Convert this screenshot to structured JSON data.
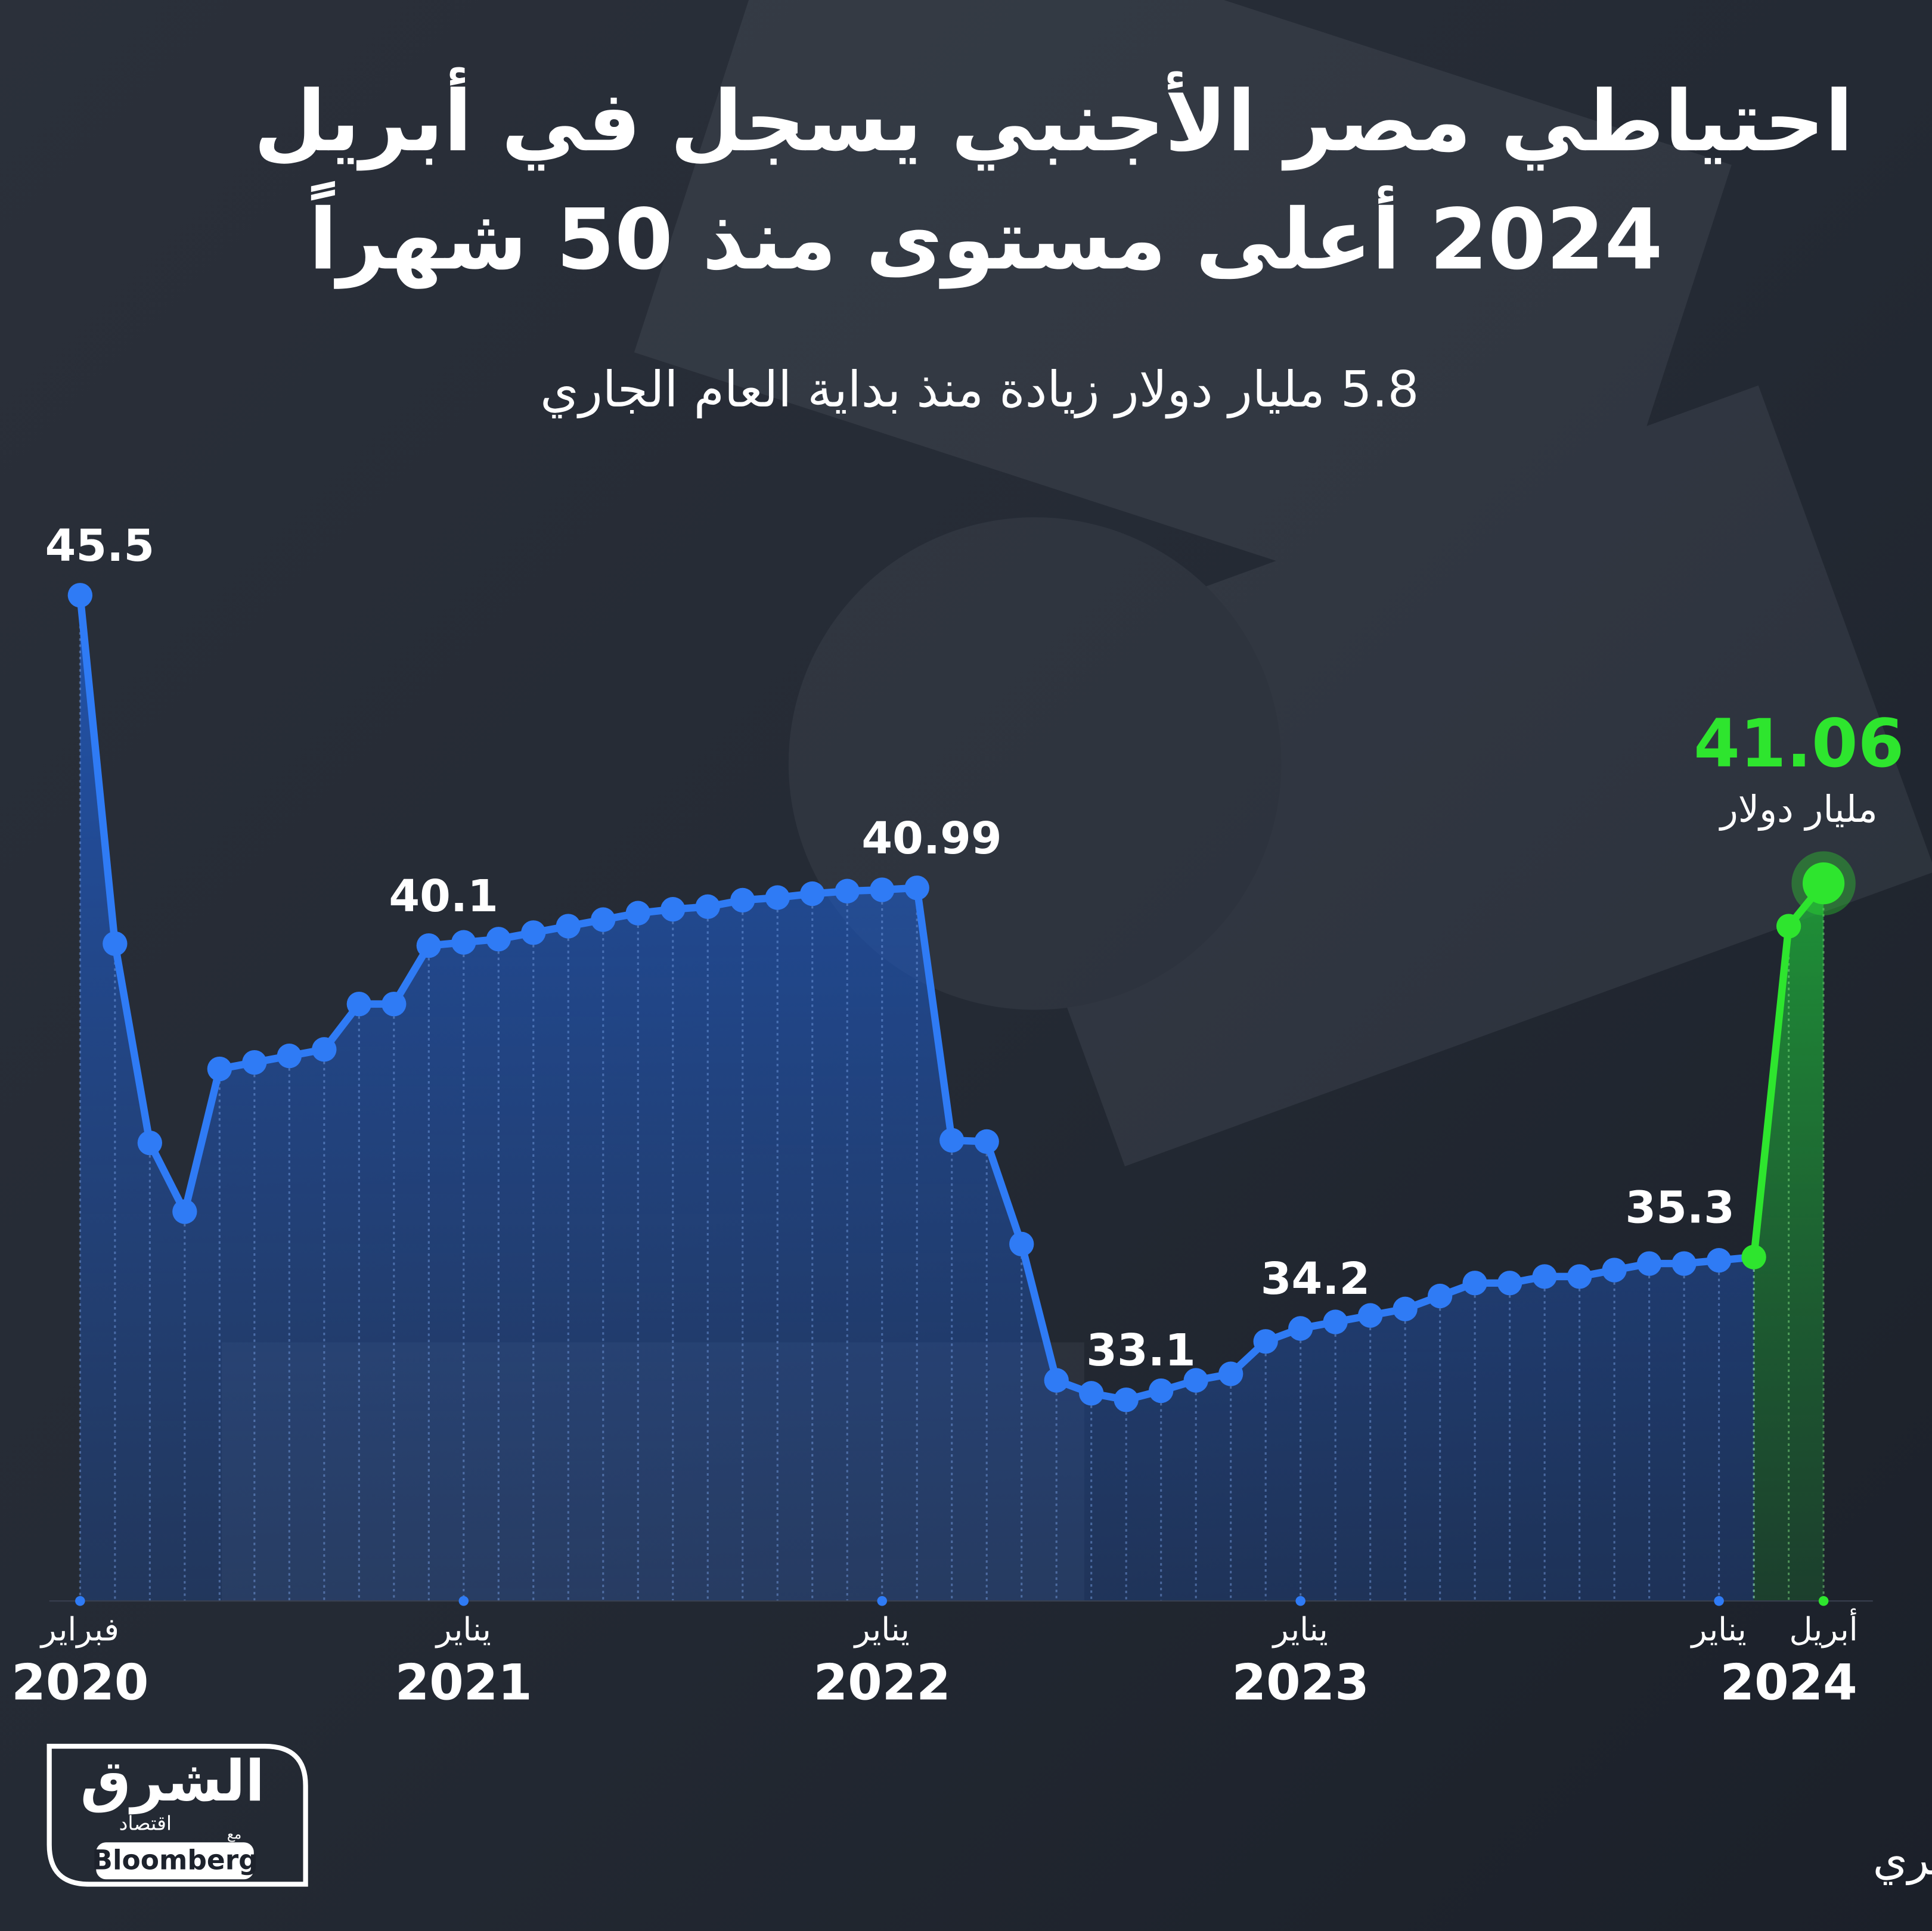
{
  "chart_data": {
    "type": "line",
    "title": [
      "احتياطي مصر الأجنبي يسجل في أبريل",
      "2024 أعلى مستوى منذ 50 شهراً"
    ],
    "subtitle": "5.8 مليار دولار زيادة منذ بداية العام الجاري",
    "categories": [
      "فبراير",
      null,
      null,
      null,
      null,
      null,
      null,
      null,
      null,
      null,
      null,
      "يناير",
      null,
      null,
      null,
      null,
      null,
      null,
      null,
      null,
      null,
      null,
      null,
      "يناير",
      null,
      null,
      null,
      null,
      null,
      null,
      null,
      null,
      null,
      null,
      null,
      "يناير",
      null,
      null,
      null,
      null,
      null,
      null,
      null,
      null,
      null,
      null,
      null,
      "يناير",
      null,
      null,
      "أبريل"
    ],
    "years": [
      "2020",
      null,
      null,
      null,
      null,
      null,
      null,
      null,
      null,
      null,
      null,
      "2021",
      null,
      null,
      null,
      null,
      null,
      null,
      null,
      null,
      null,
      null,
      null,
      "2022",
      null,
      null,
      null,
      null,
      null,
      null,
      null,
      null,
      null,
      null,
      null,
      "2023",
      null,
      null,
      null,
      null,
      null,
      null,
      null,
      null,
      null,
      null,
      null,
      null,
      null,
      "2024",
      null
    ],
    "series": [
      {
        "color": "#2f7bf5",
        "values": [
          45.5,
          40.13,
          37.06,
          36.0,
          38.2,
          38.3,
          38.4,
          38.5,
          39.2,
          39.2,
          40.1,
          40.15,
          40.2,
          40.3,
          40.4,
          40.5,
          40.6,
          40.66,
          40.7,
          40.8,
          40.84,
          40.9,
          40.94,
          40.96,
          40.99,
          37.1,
          37.08,
          35.5,
          33.4,
          33.2,
          33.1,
          33.24,
          33.4,
          33.5,
          34.0,
          34.2,
          34.3,
          34.4,
          34.5,
          34.7,
          34.9,
          34.9,
          35.0,
          35.0,
          35.1,
          35.2,
          35.2,
          35.25,
          35.3,
          null,
          null
        ],
        "value_labels": [
          "45.5",
          null,
          null,
          null,
          null,
          null,
          null,
          null,
          null,
          null,
          "40.1",
          null,
          null,
          null,
          null,
          null,
          null,
          null,
          null,
          null,
          null,
          null,
          null,
          null,
          "40.99",
          null,
          null,
          null,
          null,
          null,
          "33.1",
          null,
          null,
          null,
          null,
          "34.2",
          null,
          null,
          null,
          null,
          null,
          null,
          null,
          null,
          null,
          null,
          null,
          null,
          "35.3",
          null,
          null
        ]
      },
      {
        "color": "#2ee52e",
        "values": [
          null,
          null,
          null,
          null,
          null,
          null,
          null,
          null,
          null,
          null,
          null,
          null,
          null,
          null,
          null,
          null,
          null,
          null,
          null,
          null,
          null,
          null,
          null,
          null,
          null,
          null,
          null,
          null,
          null,
          null,
          null,
          null,
          null,
          null,
          null,
          null,
          null,
          null,
          null,
          null,
          null,
          null,
          null,
          null,
          null,
          null,
          null,
          null,
          null,
          40.4,
          41.06
        ],
        "value_labels": [
          null,
          null,
          null,
          null,
          null,
          null,
          null,
          null,
          null,
          null,
          null,
          null,
          null,
          null,
          null,
          null,
          null,
          null,
          null,
          null,
          null,
          null,
          null,
          null,
          null,
          null,
          null,
          null,
          null,
          null,
          null,
          null,
          null,
          null,
          null,
          null,
          null,
          null,
          null,
          null,
          null,
          null,
          null,
          null,
          null,
          null,
          null,
          null,
          null,
          null,
          "41.06"
        ]
      }
    ],
    "unit_label": "مليار دولار",
    "ylim": [
      30,
      46
    ],
    "source": "المصدر: بيانات البنك المركزي المصري"
  },
  "logo": {
    "brand": "الشرق",
    "sub": "اقتصاد",
    "with": "مع",
    "partner": "Bloomberg"
  }
}
